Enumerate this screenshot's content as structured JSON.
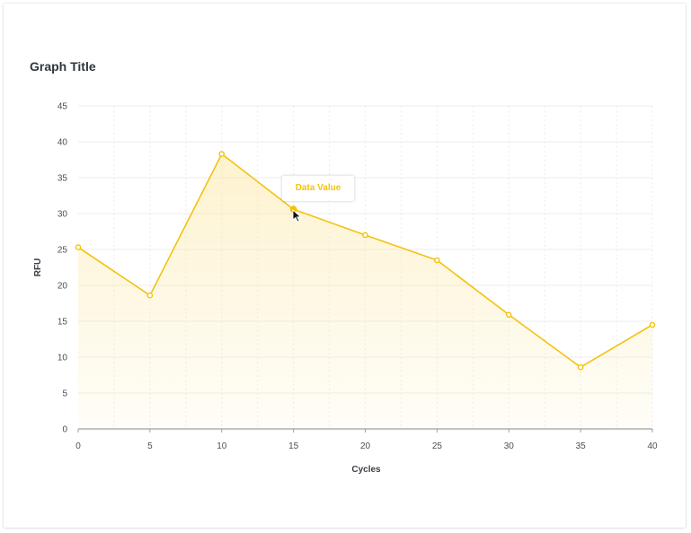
{
  "title": "Graph Title",
  "tooltip": {
    "label": "Data Value"
  },
  "colors": {
    "line": "#f4c20d",
    "area": "#fde9a8",
    "axis": "#9aa0a8",
    "grid": "#ececec",
    "text": "#4a4f57"
  },
  "chart_data": {
    "type": "area",
    "title": "Graph Title",
    "xlabel": "Cycles",
    "ylabel": "RFU",
    "xlim": [
      0,
      40
    ],
    "ylim": [
      0,
      45
    ],
    "x_ticks": [
      0,
      5,
      10,
      15,
      20,
      25,
      30,
      35,
      40
    ],
    "y_ticks": [
      0,
      5,
      10,
      15,
      20,
      25,
      30,
      35,
      40,
      45
    ],
    "grid": true,
    "series": [
      {
        "x": [
          0,
          5,
          10,
          15,
          20,
          25,
          30,
          35,
          40
        ],
        "values": [
          25.3,
          18.6,
          38.3,
          30.6,
          27.0,
          23.5,
          15.9,
          8.6,
          14.5
        ]
      }
    ],
    "highlight_index": 3
  }
}
